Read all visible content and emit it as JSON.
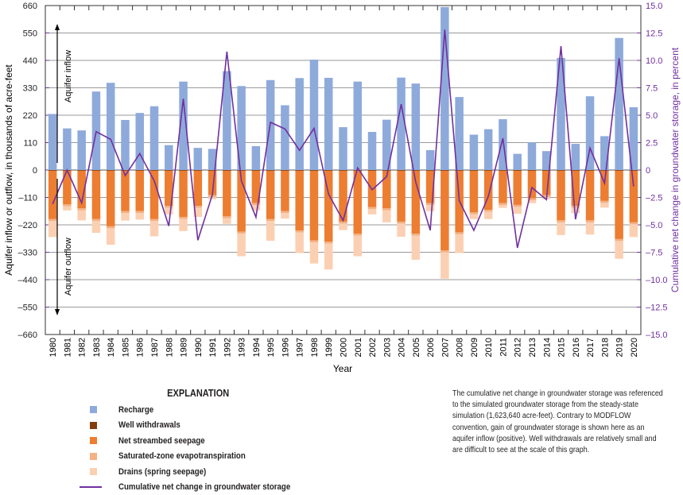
{
  "chart_data": {
    "type": "bar",
    "stacked": true,
    "xlabel": "Year",
    "ylabel": "Aquifer inflow or outflow, in thousands of acre-feet",
    "y2label": "Cumulative net change in groundwater storage, in percent",
    "ylim": [
      -660,
      660
    ],
    "yticks": [
      660,
      550,
      440,
      330,
      220,
      110,
      0,
      -110,
      -220,
      -330,
      -440,
      -550,
      -660
    ],
    "ytick_labels": [
      "660",
      "550",
      "440",
      "330",
      "220",
      "110",
      "0",
      "–110",
      "–220",
      "–330",
      "–440",
      "–550",
      "–660"
    ],
    "y2lim": [
      -15,
      15
    ],
    "y2tick_labels": [
      "15.0",
      "12.5",
      "10.0",
      "7.5",
      "5.0",
      "2.5",
      "0",
      "–2.5",
      "–5.0",
      "–7.5",
      "–10.0",
      "–12.5",
      "–15.0"
    ],
    "grid": true,
    "annotations": {
      "inflow": "Aquifer inflow",
      "outflow": "Aquifer outflow"
    },
    "categories": [
      "1980",
      "1981",
      "1982",
      "1983",
      "1984",
      "1985",
      "1986",
      "1987",
      "1988",
      "1989",
      "1990",
      "1991",
      "1992",
      "1993",
      "1994",
      "1995",
      "1996",
      "1997",
      "1998",
      "1999",
      "2000",
      "2001",
      "2002",
      "2003",
      "2004",
      "2005",
      "2006",
      "2007",
      "2008",
      "2009",
      "2010",
      "2011",
      "2012",
      "2013",
      "2014",
      "2015",
      "2016",
      "2017",
      "2018",
      "2019",
      "2020"
    ],
    "series": [
      {
        "name": "Recharge",
        "color": "#8eaadb",
        "values": [
          225,
          167,
          159,
          315,
          350,
          201,
          229,
          256,
          100,
          355,
          89,
          85,
          397,
          337,
          96,
          361,
          260,
          369,
          443,
          370,
          172,
          355,
          153,
          202,
          371,
          347,
          80,
          654,
          293,
          142,
          164,
          204,
          65,
          111,
          76,
          450,
          105,
          296,
          136,
          530,
          252
        ]
      },
      {
        "name": "Well withdrawals",
        "color": "#843c0c",
        "values": [
          -3,
          -3,
          -3,
          -3,
          -3,
          -3,
          -3,
          -3,
          -3,
          -3,
          -3,
          -3,
          -3,
          -3,
          -3,
          -3,
          -3,
          -3,
          -3,
          -3,
          -3,
          -3,
          -3,
          -3,
          -3,
          -3,
          -3,
          -3,
          -3,
          -3,
          -3,
          -3,
          -3,
          -3,
          -3,
          -3,
          -3,
          -3,
          -3,
          -3,
          -3
        ]
      },
      {
        "name": "Net streambed seepage",
        "color": "#ed7d31",
        "values": [
          -194,
          -135,
          -151,
          -194,
          -223,
          -162,
          -162,
          -194,
          -141,
          -185,
          -141,
          -98,
          -183,
          -244,
          -130,
          -194,
          -162,
          -240,
          -279,
          -284,
          -204,
          -252,
          -146,
          -151,
          -204,
          -252,
          -130,
          -319,
          -247,
          -167,
          -157,
          -130,
          -137,
          -111,
          -98,
          -199,
          -141,
          -199,
          -121,
          -274,
          -207
        ]
      },
      {
        "name": "Saturated-zone evapotranspiration",
        "color": "#f4b183",
        "values": [
          -8,
          -8,
          -8,
          -8,
          -8,
          -8,
          -8,
          -8,
          -8,
          -8,
          -8,
          -8,
          -8,
          -8,
          -8,
          -8,
          -8,
          -8,
          -8,
          -8,
          -8,
          -8,
          -8,
          -8,
          -8,
          -8,
          -8,
          -8,
          -8,
          -8,
          -8,
          -8,
          -8,
          -8,
          -8,
          -8,
          -8,
          -8,
          -8,
          -8,
          -8
        ]
      },
      {
        "name": "Drains (spring seepage)",
        "color": "#fbd0b2",
        "values": [
          -64,
          -16,
          -40,
          -47,
          -66,
          -30,
          -26,
          -61,
          -26,
          -49,
          -36,
          -8,
          -22,
          -91,
          -21,
          -79,
          -22,
          -82,
          -85,
          -104,
          -26,
          -83,
          -21,
          -48,
          -53,
          -97,
          -24,
          -106,
          -75,
          -19,
          -29,
          -11,
          -28,
          -11,
          -8,
          -51,
          -21,
          -49,
          -19,
          -71,
          -51
        ]
      },
      {
        "name": "Cumulative net change in groundwater storage",
        "type": "line",
        "axis": "right",
        "color": "#7030a0",
        "values": [
          -3.1,
          0,
          -3.0,
          3.5,
          2.8,
          -0.5,
          1.5,
          -1.0,
          -5.1,
          6.5,
          -6.4,
          -2.25,
          10.8,
          -1.0,
          -4.3,
          4.35,
          3.75,
          1.8,
          3.8,
          -2.2,
          -4.6,
          0.2,
          -1.8,
          -0.6,
          6.0,
          -1.1,
          -5.5,
          12.8,
          -2.8,
          -5.5,
          -2.4,
          2.9,
          -7.1,
          -1.6,
          -2.7,
          11.3,
          -4.5,
          2.0,
          -1.2,
          10.2,
          -1.5
        ]
      }
    ]
  },
  "legend": {
    "title": "EXPLANATION",
    "items": [
      {
        "label": "Recharge",
        "color": "#8eaadb",
        "kind": "box"
      },
      {
        "label": "Well withdrawals",
        "color": "#843c0c",
        "kind": "box"
      },
      {
        "label": "Net streambed seepage",
        "color": "#ed7d31",
        "kind": "box"
      },
      {
        "label": "Saturated-zone evapotranspiration",
        "color": "#f4b183",
        "kind": "box"
      },
      {
        "label": "Drains (spring seepage)",
        "color": "#fbd0b2",
        "kind": "box"
      },
      {
        "label": "Cumulative net change in groundwater storage",
        "color": "#7030a0",
        "kind": "line"
      }
    ]
  },
  "note": "The cumulative net change in groundwater storage was referenced to the simulated groundwater storage from the steady-state simulation (1,623,640 acre-feet). Contrary to MODFLOW convention, gain of groundwater storage is shown here as an aquifer inflow (positive). Well withdrawals are relatively small and are difficult to see at the scale of this graph."
}
